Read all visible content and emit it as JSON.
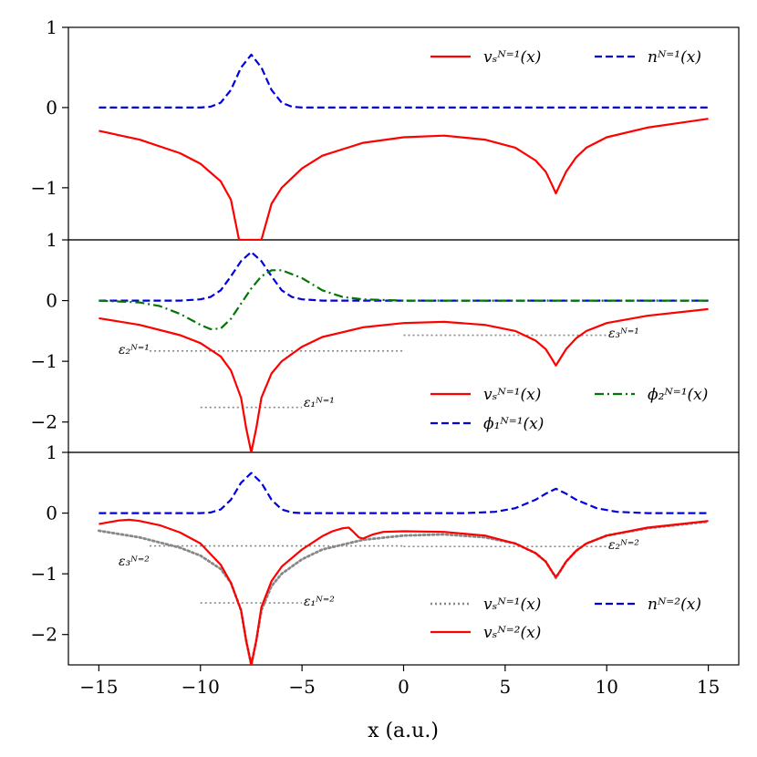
{
  "chart_data": {
    "type": "line",
    "x_axis": {
      "label": "x (a.u.)",
      "range": [
        -16.5,
        16.5
      ],
      "ticks": [
        -15,
        -10,
        -5,
        0,
        5,
        10,
        15
      ],
      "tick_labels": [
        "−15",
        "−10",
        "−5",
        "0",
        "5",
        "10",
        "15"
      ]
    },
    "colors": {
      "red": "#ff0000",
      "blue": "#0000dd",
      "green": "#007700",
      "gray": "#888888"
    },
    "panels": [
      {
        "name": "top",
        "ylim": [
          -1.65,
          1.0
        ],
        "yticks": [
          1,
          0,
          -1
        ],
        "ytick_labels": [
          "1",
          "0",
          "−1"
        ],
        "legend": [
          {
            "label": "vₛᴺ⁼¹(x)",
            "style": "solid",
            "color": "#ff0000"
          },
          {
            "label": "nᴺ⁼¹(x)",
            "style": "dashed",
            "color": "#0000dd"
          }
        ],
        "series": [
          {
            "name": "v_s^{N=1}(x)",
            "style": "solid",
            "color": "#ff0000",
            "x": [
              -15,
              -13,
              -11,
              -10,
              -9,
              -8.5,
              -8.1,
              -7.0,
              -6.5,
              -6,
              -5,
              -4,
              -2,
              0,
              2,
              4,
              5.5,
              6.5,
              7.0,
              7.3,
              7.5,
              7.7,
              8,
              8.5,
              9,
              10,
              12,
              15
            ],
            "y": [
              -0.29,
              -0.4,
              -0.57,
              -0.7,
              -0.92,
              -1.15,
              -1.65,
              -1.65,
              -1.2,
              -1.0,
              -0.76,
              -0.6,
              -0.44,
              -0.37,
              -0.35,
              -0.4,
              -0.5,
              -0.66,
              -0.8,
              -0.96,
              -1.07,
              -0.96,
              -0.8,
              -0.62,
              -0.5,
              -0.37,
              -0.25,
              -0.14
            ]
          },
          {
            "name": "n^{N=1}(x)",
            "style": "dashed",
            "color": "#0000dd",
            "x": [
              -15,
              -10,
              -9.5,
              -9,
              -8.5,
              -8,
              -7.5,
              -7,
              -6.5,
              -6,
              -5.5,
              -5,
              0,
              15
            ],
            "y": [
              0,
              0,
              0.01,
              0.06,
              0.22,
              0.5,
              0.66,
              0.5,
              0.22,
              0.06,
              0.01,
              0,
              0,
              0
            ]
          }
        ]
      },
      {
        "name": "middle",
        "ylim": [
          -2.5,
          1.0
        ],
        "yticks": [
          1,
          0,
          -1,
          -2
        ],
        "ytick_labels": [
          "1",
          "0",
          "−1",
          "−2"
        ],
        "legend": [
          {
            "label": "vₛᴺ⁼¹(x)",
            "style": "solid",
            "color": "#ff0000"
          },
          {
            "label": "ϕ₂ᴺ⁼¹(x)",
            "style": "dashdot",
            "color": "#007700"
          },
          {
            "label": "ϕ₁ᴺ⁼¹(x)",
            "style": "dashed",
            "color": "#0000dd"
          }
        ],
        "levels": [
          {
            "label": "ε₁ᴺ⁼¹",
            "y": -1.76,
            "x": [
              -10,
              -5
            ]
          },
          {
            "label": "ε₂ᴺ⁼¹",
            "y": -0.83,
            "x": [
              -12.5,
              0
            ]
          },
          {
            "label": "ε₃ᴺ⁼¹",
            "y": -0.57,
            "x": [
              0,
              10
            ]
          }
        ],
        "series": [
          {
            "name": "v_s^{N=1}(x)",
            "style": "solid",
            "color": "#ff0000",
            "x": [
              -15,
              -13,
              -11,
              -10,
              -9,
              -8.5,
              -8,
              -7.75,
              -7.5,
              -7.25,
              -7,
              -6.5,
              -6,
              -5,
              -4,
              -2,
              0,
              2,
              4,
              5.5,
              6.5,
              7.0,
              7.3,
              7.5,
              7.7,
              8,
              8.5,
              9,
              10,
              12,
              15
            ],
            "y": [
              -0.29,
              -0.4,
              -0.57,
              -0.7,
              -0.92,
              -1.15,
              -1.6,
              -2.1,
              -2.5,
              -2.1,
              -1.6,
              -1.2,
              -1.0,
              -0.76,
              -0.6,
              -0.44,
              -0.37,
              -0.35,
              -0.4,
              -0.5,
              -0.66,
              -0.8,
              -0.96,
              -1.07,
              -0.96,
              -0.8,
              -0.62,
              -0.5,
              -0.37,
              -0.25,
              -0.14
            ]
          },
          {
            "name": "phi_1^{N=1}(x)",
            "style": "dashed",
            "color": "#0000dd",
            "x": [
              -15,
              -11,
              -10,
              -9.5,
              -9,
              -8.5,
              -8,
              -7.5,
              -7,
              -6.5,
              -6,
              -5.5,
              -5,
              -4,
              -2,
              0,
              15
            ],
            "y": [
              0,
              0,
              0.02,
              0.06,
              0.17,
              0.4,
              0.65,
              0.8,
              0.65,
              0.4,
              0.17,
              0.06,
              0.02,
              0,
              0,
              0,
              0
            ]
          },
          {
            "name": "phi_2^{N=1}(x)",
            "style": "dashdot",
            "color": "#007700",
            "x": [
              -15,
              -13,
              -12,
              -11,
              -10,
              -9.5,
              -9,
              -8.5,
              -8,
              -7.5,
              -7,
              -6.5,
              -6,
              -5,
              -4,
              -3,
              -2,
              0,
              15
            ],
            "y": [
              0,
              -0.03,
              -0.09,
              -0.22,
              -0.4,
              -0.47,
              -0.46,
              -0.3,
              -0.05,
              0.2,
              0.4,
              0.5,
              0.5,
              0.37,
              0.17,
              0.06,
              0.02,
              0,
              0
            ]
          }
        ]
      },
      {
        "name": "bottom",
        "ylim": [
          -2.5,
          1.0
        ],
        "yticks": [
          1,
          0,
          -1,
          -2
        ],
        "ytick_labels": [
          "1",
          "0",
          "−1",
          "−2"
        ],
        "legend": [
          {
            "label": "vₛᴺ⁼¹(x)",
            "style": "dotted",
            "color": "#888888"
          },
          {
            "label": "nᴺ⁼²(x)",
            "style": "dashed",
            "color": "#0000dd"
          },
          {
            "label": "vₛᴺ⁼²(x)",
            "style": "solid",
            "color": "#ff0000"
          }
        ],
        "levels": [
          {
            "label": "ε₁ᴺ⁼²",
            "y": -1.48,
            "x": [
              -10,
              -5
            ]
          },
          {
            "label": "ε₂ᴺ⁼²",
            "y": -0.55,
            "x": [
              0,
              10
            ]
          },
          {
            "label": "ε₃ᴺ⁼²",
            "y": -0.54,
            "x": [
              -12.5,
              0
            ]
          }
        ],
        "series": [
          {
            "name": "v_s^{N=1}(x)",
            "style": "dotted",
            "color": "#888888",
            "x": [
              -15,
              -13,
              -11,
              -10,
              -9,
              -8.5,
              -8,
              -7.75,
              -7.5,
              -7.25,
              -7,
              -6.5,
              -6,
              -5,
              -4,
              -2,
              0,
              2,
              4,
              5.5,
              6.5,
              7.0,
              7.3,
              7.5,
              7.7,
              8,
              8.5,
              9,
              10,
              12,
              15
            ],
            "y": [
              -0.29,
              -0.4,
              -0.57,
              -0.7,
              -0.92,
              -1.15,
              -1.6,
              -2.1,
              -2.5,
              -2.1,
              -1.6,
              -1.2,
              -1.0,
              -0.76,
              -0.6,
              -0.44,
              -0.37,
              -0.35,
              -0.4,
              -0.5,
              -0.66,
              -0.8,
              -0.96,
              -1.07,
              -0.96,
              -0.8,
              -0.62,
              -0.5,
              -0.37,
              -0.25,
              -0.14
            ]
          },
          {
            "name": "v_s^{N=2}(x)",
            "style": "solid",
            "color": "#ff0000",
            "x": [
              -15,
              -14.5,
              -14,
              -13.5,
              -13,
              -12,
              -11,
              -10,
              -9,
              -8.5,
              -8,
              -7.75,
              -7.5,
              -7.25,
              -7,
              -6.5,
              -6,
              -5,
              -4,
              -3.5,
              -3,
              -2.7,
              -2.5,
              -2.2,
              -2,
              -1.5,
              -1,
              0,
              2,
              4,
              5.5,
              6.5,
              7.0,
              7.3,
              7.5,
              7.7,
              8,
              8.5,
              9,
              10,
              12,
              15
            ],
            "y": [
              -0.18,
              -0.15,
              -0.12,
              -0.11,
              -0.13,
              -0.2,
              -0.32,
              -0.5,
              -0.85,
              -1.15,
              -1.6,
              -2.1,
              -2.5,
              -2.1,
              -1.55,
              -1.12,
              -0.88,
              -0.6,
              -0.38,
              -0.3,
              -0.25,
              -0.24,
              -0.3,
              -0.4,
              -0.42,
              -0.35,
              -0.31,
              -0.3,
              -0.31,
              -0.37,
              -0.5,
              -0.66,
              -0.8,
              -0.96,
              -1.05,
              -0.96,
              -0.8,
              -0.62,
              -0.5,
              -0.37,
              -0.24,
              -0.13
            ]
          },
          {
            "name": "n^{N=2}(x)",
            "style": "dashed",
            "color": "#0000dd",
            "x": [
              -15,
              -10,
              -9.5,
              -9,
              -8.5,
              -8,
              -7.5,
              -7,
              -6.5,
              -6,
              -5.5,
              -5,
              0,
              3,
              4.5,
              5.5,
              6.5,
              7.0,
              7.5,
              8,
              8.5,
              9.5,
              10.5,
              12,
              15
            ],
            "y": [
              0,
              0,
              0.01,
              0.06,
              0.22,
              0.5,
              0.66,
              0.5,
              0.22,
              0.06,
              0.01,
              0,
              0,
              0,
              0.02,
              0.08,
              0.22,
              0.32,
              0.4,
              0.32,
              0.22,
              0.08,
              0.02,
              0,
              0
            ]
          }
        ]
      }
    ]
  }
}
